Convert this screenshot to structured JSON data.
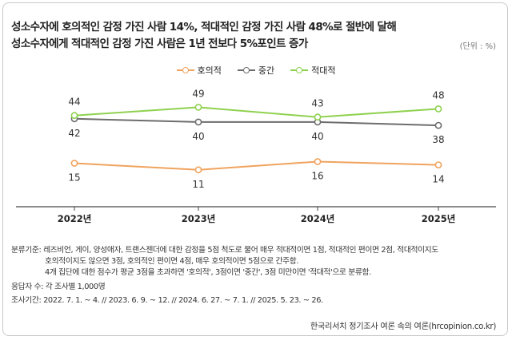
{
  "chart_data": {
    "type": "line",
    "title_line1": "성소수자에 호의적인 감정 가진 사람 14%, 적대적인 감정 가진 사람 48%로 절반에 달해",
    "title_line2": "성소수자에게 적대적인 감정 가진 사람은 1년 전보다 5%포인트 증가",
    "unit_label": "(단위 : %)",
    "categories": [
      "2022년",
      "2023년",
      "2024년",
      "2025년"
    ],
    "series": [
      {
        "name": "호의적",
        "color": "#f0a35e",
        "values": [
          15,
          11,
          16,
          14
        ]
      },
      {
        "name": "중간",
        "color": "#6d6d6d",
        "values": [
          42,
          40,
          40,
          38
        ]
      },
      {
        "name": "적대적",
        "color": "#8fd14f",
        "values": [
          44,
          49,
          43,
          48
        ]
      }
    ],
    "legend_position": "top-center",
    "grid": false
  },
  "notes": {
    "classification_line1": "분류기준: 레즈비언, 게이, 양성애자, 트랜스젠더에 대한  감정을 5점 척도로 물어 매우 적대적이면 1점, 적대적인 편이면 2점, 적대적이지도",
    "classification_line2": "호의적이지도 않으면 3점, 호의적인 편이면 4점, 매우 호의적이면 5점으로 간주함.",
    "classification_line3": "4개 집단에 대한 점수가 평균 3점을 초과하면 '호의적', 3점이면 '중간', 3점 미만이면 '적대적'으로 분류함.",
    "respondents": "응답자 수: 각 조사별 1,000명",
    "survey_period": "조사기간: 2022. 7. 1. ~ 4.  //  2023. 6. 9. ~ 12. //  2024. 6. 27. ~ 7. 1. //  2025. 5. 23. ~ 26."
  },
  "source": "한국리서치 정기조사 여론 속의 여론(hrcopinion.co.kr)"
}
